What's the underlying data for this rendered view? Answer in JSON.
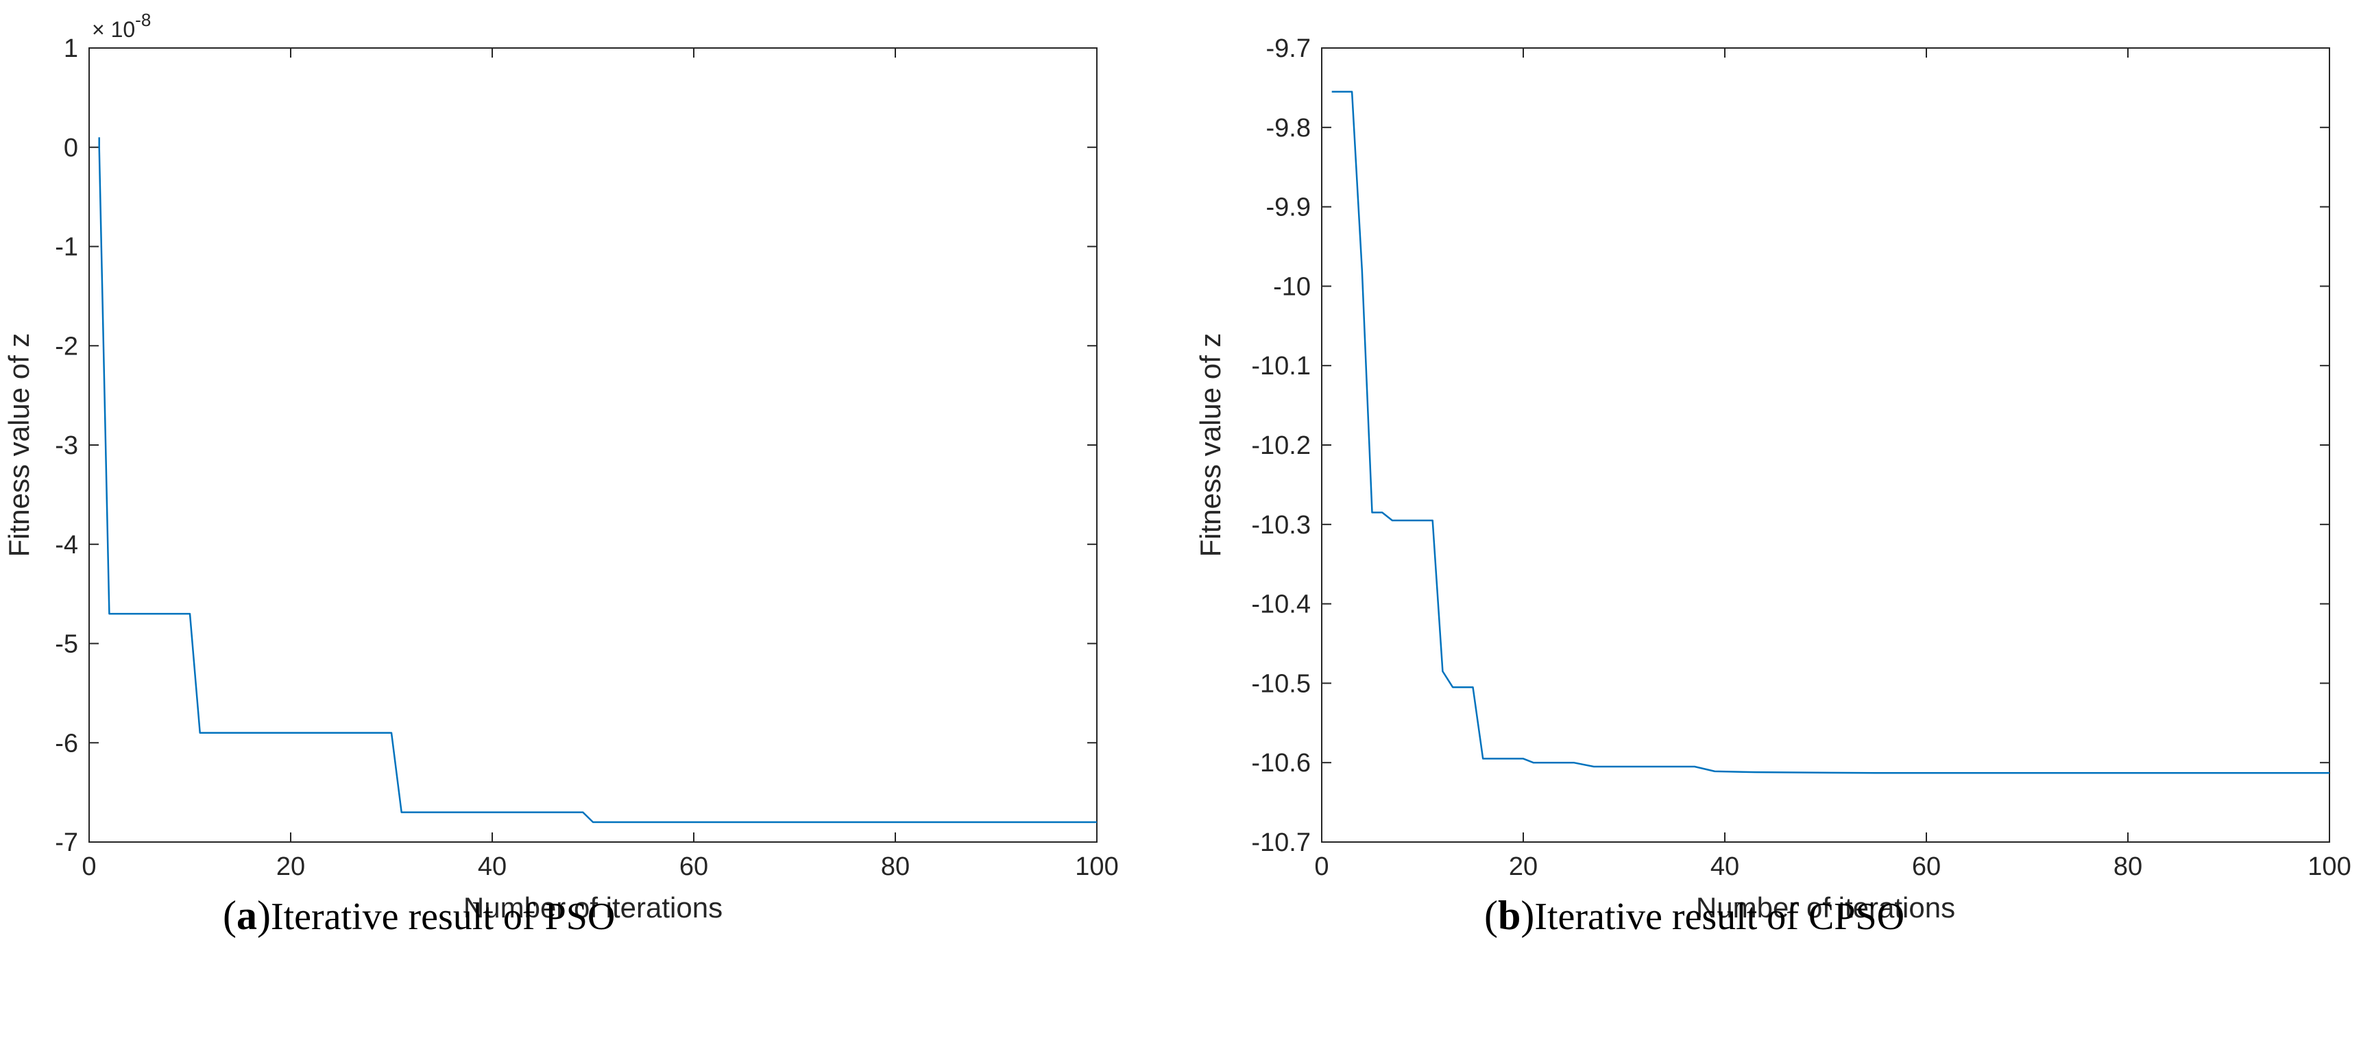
{
  "colors": {
    "line": "#0072BD",
    "axis": "#262626"
  },
  "chart_data": [
    {
      "type": "line",
      "caption_letter": "a",
      "caption_text": "Iterative result of PSO",
      "xlabel": "Number of iterations",
      "ylabel": "Fitness value of z",
      "xlim": [
        0,
        100
      ],
      "ylim": [
        -7,
        1
      ],
      "xticks": [
        0,
        20,
        40,
        60,
        80,
        100
      ],
      "xtick_labels": [
        "0",
        "20",
        "40",
        "60",
        "80",
        "100"
      ],
      "yticks": [
        1,
        0,
        -1,
        -2,
        -3,
        -4,
        -5,
        -6,
        -7
      ],
      "ytick_labels": [
        "1",
        "0",
        "-1",
        "-2",
        "-3",
        "-4",
        "-5",
        "-6",
        "-7"
      ],
      "exponent_label": "× 10",
      "exponent_power": "-8",
      "series": [
        {
          "name": "PSO",
          "x": [
            1,
            1,
            2,
            2,
            10,
            11,
            11,
            30,
            31,
            31,
            49,
            50,
            50,
            100
          ],
          "y": [
            0.1,
            0,
            -4.7,
            -4.7,
            -4.7,
            -5.9,
            -5.9,
            -5.9,
            -6.7,
            -6.7,
            -6.7,
            -6.8,
            -6.8,
            -6.8
          ]
        }
      ]
    },
    {
      "type": "line",
      "caption_letter": "b",
      "caption_text": "Iterative result of CPSO",
      "xlabel": "Number of iterations",
      "ylabel": "Fitness value of z",
      "xlim": [
        0,
        100
      ],
      "ylim": [
        -10.7,
        -9.7
      ],
      "xticks": [
        0,
        20,
        40,
        60,
        80,
        100
      ],
      "xtick_labels": [
        "0",
        "20",
        "40",
        "60",
        "80",
        "100"
      ],
      "yticks": [
        -9.7,
        -9.8,
        -9.9,
        -10,
        -10.1,
        -10.2,
        -10.3,
        -10.4,
        -10.5,
        -10.6,
        -10.7
      ],
      "ytick_labels": [
        "-9.7",
        "-9.8",
        "-9.9",
        "-10",
        "-10.1",
        "-10.2",
        "-10.3",
        "-10.4",
        "-10.5",
        "-10.6",
        "-10.7"
      ],
      "series": [
        {
          "name": "CPSO",
          "x": [
            1,
            3,
            4,
            5,
            6,
            7,
            11,
            12,
            13,
            15,
            16,
            20,
            21,
            25,
            27,
            37,
            39,
            43,
            55,
            100
          ],
          "y": [
            -9.755,
            -9.755,
            -9.98,
            -10.285,
            -10.285,
            -10.295,
            -10.295,
            -10.485,
            -10.505,
            -10.505,
            -10.595,
            -10.595,
            -10.6,
            -10.6,
            -10.605,
            -10.605,
            -10.611,
            -10.612,
            -10.613,
            -10.613
          ]
        }
      ]
    }
  ]
}
